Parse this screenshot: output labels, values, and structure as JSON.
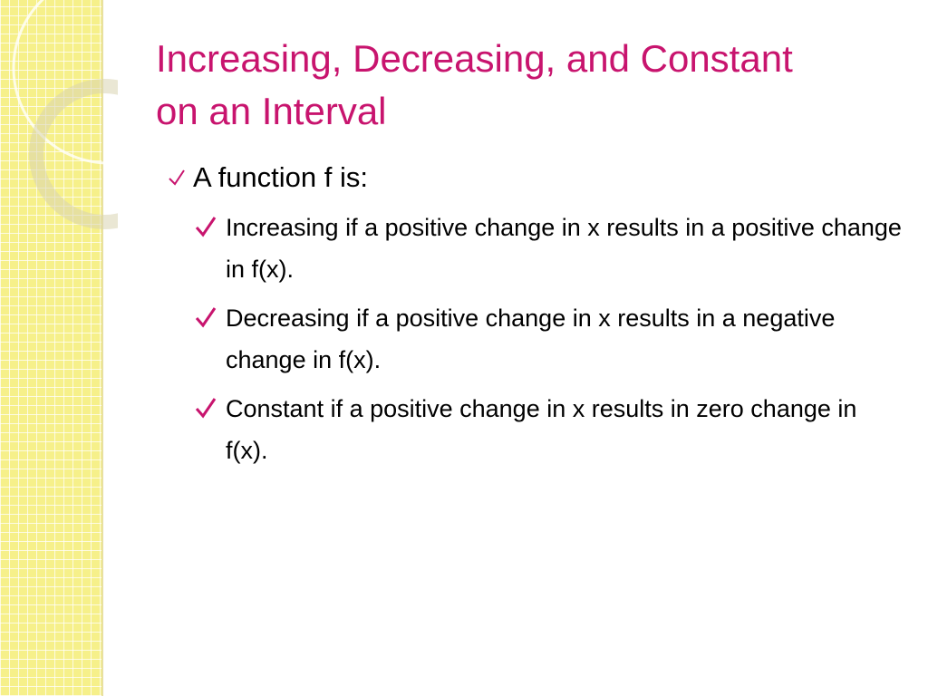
{
  "title": {
    "lines": [
      "Increasing, Decreasing, and Constant",
      "on an Interval"
    ]
  },
  "bullets": {
    "intro": "A function f is:",
    "items": [
      "Increasing if a positive change in x results in a positive change in f(x).",
      "Decreasing if a positive change in x results in a negative change in f(x).",
      "Constant if a positive change in x results in zero change in f(x)."
    ]
  }
}
